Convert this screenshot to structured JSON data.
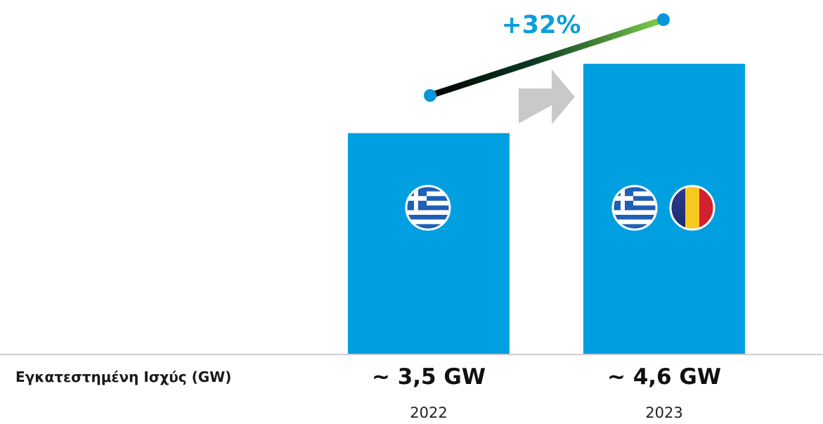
{
  "colors": {
    "bar": "#009fe0",
    "growth_text": "#0a9ede",
    "dot": "#0a95d8",
    "arrow": "#c9c9c9",
    "baseline": "#cfcfcf"
  },
  "labels": {
    "row_label": "Εγκατεστημένη Ισχύς (GW)",
    "growth": "+32%"
  },
  "bars": [
    {
      "year": "2022",
      "value_label": "~ 3,5 GW",
      "flags": [
        "greece-flag"
      ]
    },
    {
      "year": "2023",
      "value_label": "~ 4,6 GW",
      "flags": [
        "greece-flag",
        "romania-flag"
      ]
    }
  ],
  "chart_data": {
    "type": "bar",
    "categories": [
      "2022",
      "2023"
    ],
    "values": [
      3.5,
      4.6
    ],
    "title": "",
    "xlabel": "",
    "ylabel": "Εγκατεστημένη Ισχύς (GW)",
    "ylim": [
      0,
      5.5
    ],
    "grid": false,
    "annotations": [
      "+32%"
    ]
  }
}
